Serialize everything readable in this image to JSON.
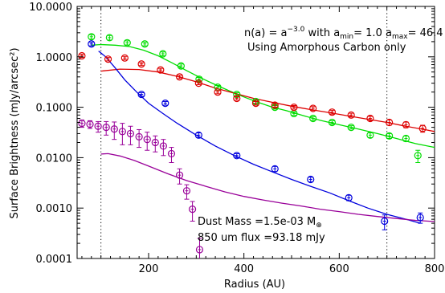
{
  "chart_data": {
    "type": "scatter",
    "xlabel": "Radius (AU)",
    "ylabel": "Surface Brightness (mJy/arcsec²)",
    "xlim": [
      50,
      800
    ],
    "ylim": [
      0.0001,
      10
    ],
    "yscale": "log",
    "grid": false,
    "x_ticks": [
      200,
      400,
      600,
      800
    ],
    "x_tick_labels": [
      "200",
      "400",
      "600",
      "800"
    ],
    "y_ticks": [
      0.0001,
      0.001,
      0.01,
      0.1,
      1,
      10
    ],
    "y_tick_labels": [
      "0.0001",
      "0.0010",
      "0.0100",
      "0.1000",
      "1.0000",
      "10.0000"
    ],
    "vlines": [
      100,
      700
    ],
    "annotation": {
      "line1": {
        "lhs": "n(a) = a",
        "exp": "−3.0",
        "with": " with a",
        "amin_sub": "min",
        "amin_val": "= 1.0 a",
        "amax_sub": "max",
        "amax_val": "= 46.4 um"
      },
      "line2": "Using Amorphous Carbon only",
      "dust_mass_text": "Dust Mass =1.5e-03 M",
      "dust_mass_symbol": "⊕",
      "flux_text": "850 um flux =93.18 mJy"
    },
    "series": [
      {
        "color": "#00dd00",
        "points": [
          {
            "x": 80,
            "y": 2.5,
            "err": 0.25
          },
          {
            "x": 118,
            "y": 2.4,
            "err": 0.25
          },
          {
            "x": 155,
            "y": 1.9,
            "err": 0.18
          },
          {
            "x": 192,
            "y": 1.8,
            "err": 0.15
          },
          {
            "x": 230,
            "y": 1.15,
            "err": 0.1
          },
          {
            "x": 268,
            "y": 0.66,
            "err": 0.06
          },
          {
            "x": 306,
            "y": 0.36,
            "err": 0.03
          },
          {
            "x": 345,
            "y": 0.25,
            "err": 0.02
          },
          {
            "x": 385,
            "y": 0.18,
            "err": 0.015
          },
          {
            "x": 425,
            "y": 0.13,
            "err": 0.01
          },
          {
            "x": 465,
            "y": 0.1,
            "err": 0.008
          },
          {
            "x": 505,
            "y": 0.075,
            "err": 0.006
          },
          {
            "x": 545,
            "y": 0.06,
            "err": 0.005
          },
          {
            "x": 585,
            "y": 0.05,
            "err": 0.004
          },
          {
            "x": 625,
            "y": 0.04,
            "err": 0.003
          },
          {
            "x": 665,
            "y": 0.028,
            "err": 0.003
          },
          {
            "x": 705,
            "y": 0.027,
            "err": 0.003
          },
          {
            "x": 740,
            "y": 0.024,
            "err": 0.003
          },
          {
            "x": 765,
            "y": 0.011,
            "err": 0.003
          }
        ]
      },
      {
        "color": "#dd0000",
        "points": [
          {
            "x": 60,
            "y": 1.05,
            "err": 0.08
          },
          {
            "x": 115,
            "y": 0.9,
            "err": 0.07
          },
          {
            "x": 150,
            "y": 0.95,
            "err": 0.07
          },
          {
            "x": 185,
            "y": 0.72,
            "err": 0.05
          },
          {
            "x": 225,
            "y": 0.55,
            "err": 0.04
          },
          {
            "x": 265,
            "y": 0.4,
            "err": 0.03
          },
          {
            "x": 305,
            "y": 0.3,
            "err": 0.02
          },
          {
            "x": 345,
            "y": 0.2,
            "err": 0.015
          },
          {
            "x": 385,
            "y": 0.15,
            "err": 0.012
          },
          {
            "x": 425,
            "y": 0.12,
            "err": 0.01
          },
          {
            "x": 465,
            "y": 0.11,
            "err": 0.009
          },
          {
            "x": 505,
            "y": 0.1,
            "err": 0.008
          },
          {
            "x": 545,
            "y": 0.095,
            "err": 0.008
          },
          {
            "x": 585,
            "y": 0.08,
            "err": 0.007
          },
          {
            "x": 625,
            "y": 0.07,
            "err": 0.006
          },
          {
            "x": 665,
            "y": 0.06,
            "err": 0.006
          },
          {
            "x": 705,
            "y": 0.05,
            "err": 0.006
          },
          {
            "x": 740,
            "y": 0.045,
            "err": 0.006
          },
          {
            "x": 775,
            "y": 0.038,
            "err": 0.006
          }
        ]
      },
      {
        "color": "#0000dd",
        "points": [
          {
            "x": 80,
            "y": 1.8,
            "err": 0.15
          },
          {
            "x": 185,
            "y": 0.18,
            "err": 0.015
          },
          {
            "x": 235,
            "y": 0.12,
            "err": 0.01
          },
          {
            "x": 305,
            "y": 0.028,
            "err": 0.003
          },
          {
            "x": 385,
            "y": 0.011,
            "err": 0.001
          },
          {
            "x": 465,
            "y": 0.006,
            "err": 0.0007
          },
          {
            "x": 540,
            "y": 0.0037,
            "err": 0.0004
          },
          {
            "x": 620,
            "y": 0.0016,
            "err": 0.0002
          },
          {
            "x": 695,
            "y": 0.00055,
            "err": 0.00018
          },
          {
            "x": 770,
            "y": 0.00065,
            "err": 0.00015
          }
        ]
      },
      {
        "color": "#990099",
        "points": [
          {
            "x": 60,
            "y": 0.048,
            "err": 0.008
          },
          {
            "x": 77,
            "y": 0.046,
            "err": 0.008
          },
          {
            "x": 94,
            "y": 0.042,
            "err": 0.01
          },
          {
            "x": 111,
            "y": 0.04,
            "err": 0.012
          },
          {
            "x": 128,
            "y": 0.037,
            "err": 0.014
          },
          {
            "x": 145,
            "y": 0.033,
            "err": 0.015
          },
          {
            "x": 162,
            "y": 0.03,
            "err": 0.012
          },
          {
            "x": 180,
            "y": 0.026,
            "err": 0.01
          },
          {
            "x": 197,
            "y": 0.023,
            "err": 0.009
          },
          {
            "x": 214,
            "y": 0.02,
            "err": 0.007
          },
          {
            "x": 231,
            "y": 0.017,
            "err": 0.006
          },
          {
            "x": 248,
            "y": 0.012,
            "err": 0.004
          },
          {
            "x": 265,
            "y": 0.0045,
            "err": 0.0015
          },
          {
            "x": 280,
            "y": 0.0022,
            "err": 0.0007
          },
          {
            "x": 292,
            "y": 0.00095,
            "err": 0.0004
          },
          {
            "x": 307,
            "y": 0.00015,
            "err": 0.0001
          }
        ]
      }
    ],
    "model_curves": [
      {
        "color": "#00dd00",
        "x": [
          80,
          100,
          130,
          160,
          190,
          220,
          250,
          280,
          310,
          340,
          370,
          400,
          430,
          460,
          490,
          520,
          560,
          600,
          640,
          680,
          720,
          760,
          800
        ],
        "y": [
          1.7,
          1.75,
          1.7,
          1.6,
          1.35,
          1.05,
          0.75,
          0.53,
          0.38,
          0.28,
          0.21,
          0.16,
          0.125,
          0.1,
          0.085,
          0.07,
          0.055,
          0.045,
          0.037,
          0.03,
          0.024,
          0.019,
          0.016
        ]
      },
      {
        "color": "#dd0000",
        "x": [
          100,
          140,
          180,
          220,
          260,
          300,
          340,
          380,
          420,
          460,
          500,
          540,
          580,
          620,
          660,
          700,
          740,
          780,
          800
        ],
        "y": [
          0.52,
          0.57,
          0.56,
          0.5,
          0.41,
          0.32,
          0.24,
          0.19,
          0.15,
          0.125,
          0.105,
          0.09,
          0.078,
          0.067,
          0.058,
          0.05,
          0.042,
          0.036,
          0.033
        ]
      },
      {
        "color": "#0000dd",
        "x": [
          95,
          110,
          130,
          150,
          175,
          200,
          230,
          260,
          300,
          340,
          380,
          420,
          460,
          500,
          540,
          580,
          620,
          660,
          700,
          740,
          770
        ],
        "y": [
          1.3,
          1.0,
          0.6,
          0.35,
          0.2,
          0.12,
          0.075,
          0.048,
          0.028,
          0.017,
          0.011,
          0.0074,
          0.0052,
          0.0037,
          0.0027,
          0.002,
          0.0014,
          0.001,
          0.00075,
          0.0006,
          0.0005
        ]
      },
      {
        "color": "#990099",
        "x": [
          100,
          115,
          140,
          170,
          200,
          240,
          280,
          320,
          360,
          400,
          440,
          480,
          520,
          560,
          600,
          640,
          680,
          720,
          760,
          800
        ],
        "y": [
          0.0118,
          0.012,
          0.0108,
          0.0088,
          0.0068,
          0.0048,
          0.0035,
          0.0027,
          0.0021,
          0.0017,
          0.00145,
          0.00125,
          0.0011,
          0.00095,
          0.00085,
          0.00075,
          0.00068,
          0.00062,
          0.00057,
          0.00054
        ]
      }
    ]
  }
}
